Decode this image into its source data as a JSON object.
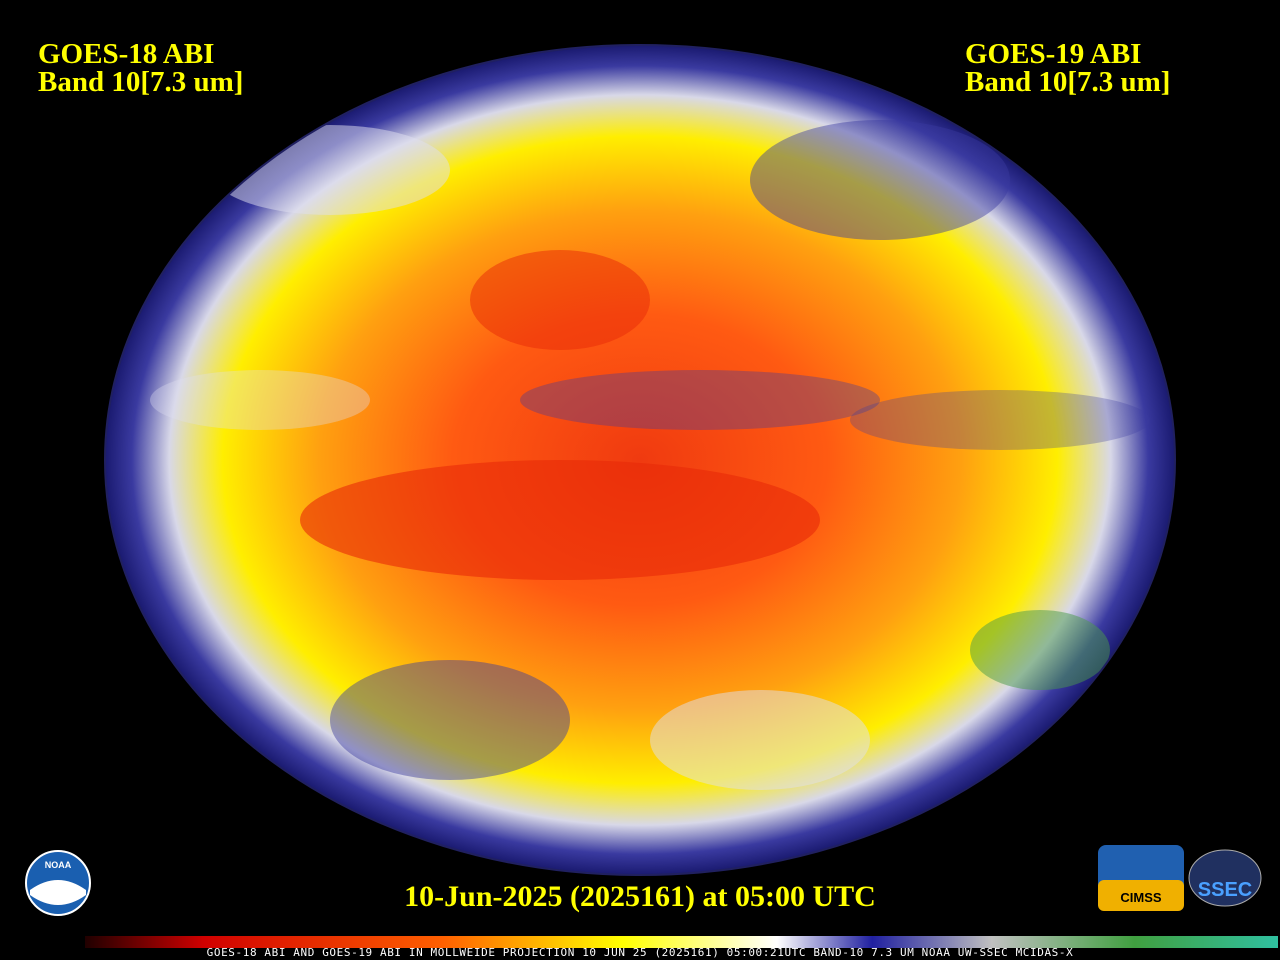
{
  "header": {
    "left": {
      "title": "GOES-18 ABI",
      "band": "Band 10[7.3 um]"
    },
    "right": {
      "title": "GOES-19 ABI",
      "band": "Band 10[7.3 um]"
    }
  },
  "caption": "10-Jun-2025 (2025161) at 05:00 UTC",
  "footer_strip": "GOES-18 ABI AND GOES-19 ABI IN MOLLWEIDE PROJECTION 10 JUN 25 (2025161) 05:00:21UTC BAND-10 7.3 UM NOAA UW-SSEC MCIDAS-X",
  "logos": {
    "noaa": "NOAA",
    "cimss": "CIMSS",
    "ssec": "SSEC"
  }
}
